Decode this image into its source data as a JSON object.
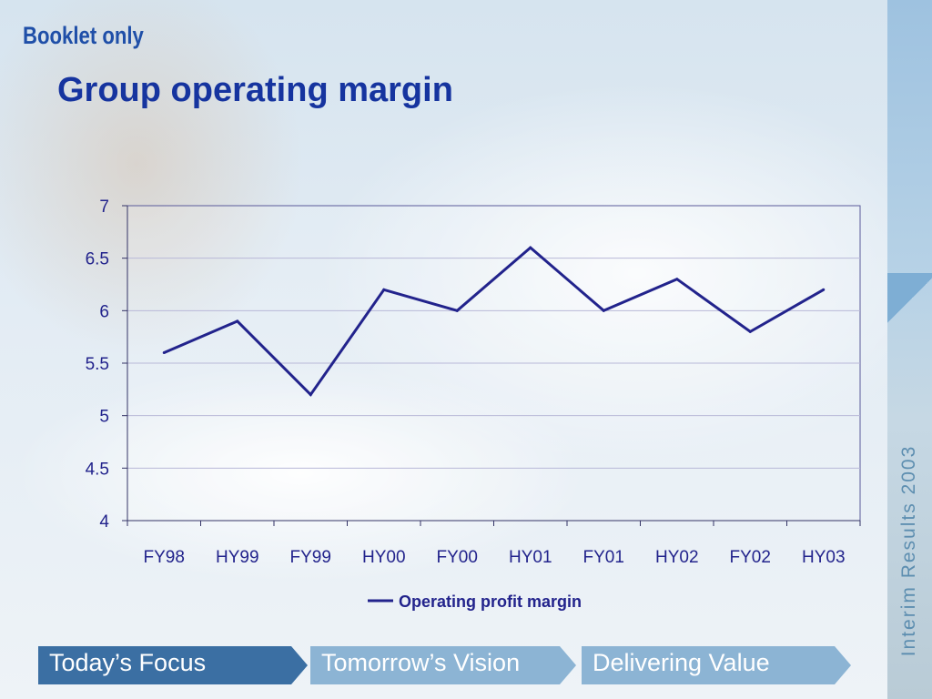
{
  "header": {
    "tag": "Booklet only",
    "title": "Group operating margin"
  },
  "sidebar": {
    "title": "Interim Results 2003"
  },
  "chart_data": {
    "type": "line",
    "title": "Group operating margin",
    "categories": [
      "FY98",
      "HY99",
      "FY99",
      "HY00",
      "FY00",
      "HY01",
      "FY01",
      "HY02",
      "FY02",
      "HY03"
    ],
    "series": [
      {
        "name": "Operating profit margin",
        "values": [
          5.6,
          5.9,
          5.2,
          6.2,
          6.0,
          6.6,
          6.0,
          6.3,
          5.8,
          6.2
        ]
      }
    ],
    "yticks": [
      "4",
      "4.5",
      "5",
      "5.5",
      "6",
      "6.5",
      "7"
    ],
    "ylim": [
      4,
      7
    ],
    "grid": true,
    "legend": "bottom-center",
    "line_color": "#22238c",
    "text_color": "#22238c"
  },
  "nav": {
    "items": [
      {
        "label": "Today’s Focus",
        "color": "#3b6fa3"
      },
      {
        "label": "Tomorrow’s Vision",
        "color": "#8cb4d4"
      },
      {
        "label": "Delivering Value",
        "color": "#8cb4d4"
      }
    ]
  }
}
